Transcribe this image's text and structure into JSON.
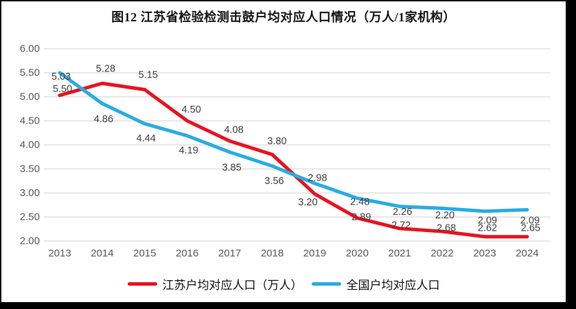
{
  "title": "图12  江苏省检验检测击鼓户均对应人口情况（万人/1家机构）",
  "chart_data": {
    "type": "line",
    "categories": [
      "2013",
      "2014",
      "2015",
      "2016",
      "2017",
      "2018",
      "2019",
      "2020",
      "2021",
      "2022",
      "2023",
      "2024"
    ],
    "series": [
      {
        "name": "江苏户均对应人口（万人）",
        "color": "#e8131f",
        "values": [
          5.03,
          5.28,
          5.15,
          4.5,
          4.08,
          3.8,
          2.98,
          2.48,
          2.26,
          2.2,
          2.09,
          2.09
        ]
      },
      {
        "name": "全国户均对应人口",
        "color": "#29ace3",
        "values": [
          5.5,
          4.86,
          4.44,
          4.19,
          3.85,
          3.56,
          3.2,
          2.89,
          2.72,
          2.68,
          2.62,
          2.65
        ]
      }
    ],
    "ylim": [
      2.0,
      6.0
    ],
    "ytick_labels": [
      "6.00",
      "5.50",
      "5.00",
      "4.50",
      "4.00",
      "3.50",
      "3.00",
      "2.50",
      "2.00"
    ],
    "xlabel": "",
    "ylabel": "",
    "grid": true,
    "legend_position": "bottom",
    "data_labels_decimals": 2
  },
  "colors": {
    "background": "#ffffff",
    "frame_border": "#000000",
    "gridline": "#d9d9d9",
    "axis_text": "#595959",
    "data_label_text": "#3f3f3f",
    "series_jiangsu": "#e8131f",
    "series_national": "#29ace3"
  }
}
